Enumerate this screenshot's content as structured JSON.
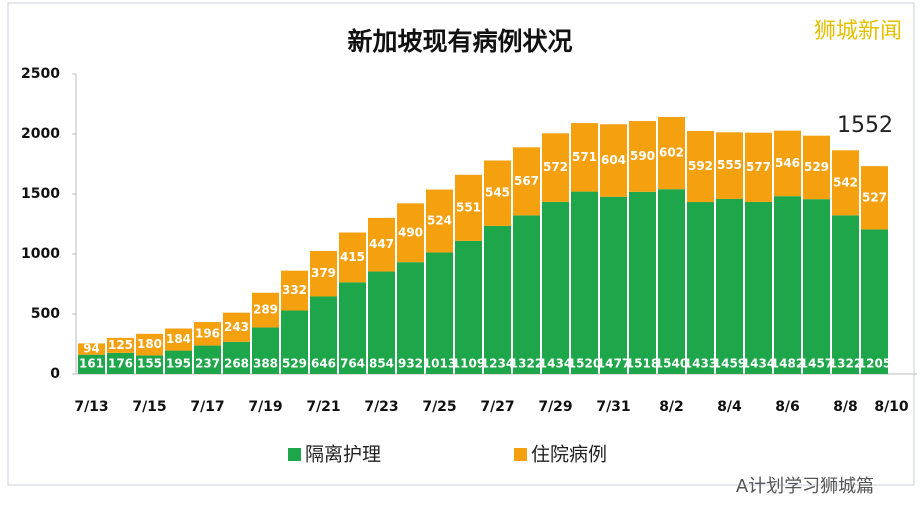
{
  "chart_data": {
    "type": "stacked-bar",
    "title": "新加坡现有病例状况",
    "categories": [
      "7/13",
      null,
      "7/15",
      null,
      "7/17",
      null,
      "7/19",
      null,
      "7/21",
      null,
      "7/23",
      null,
      "7/25",
      null,
      "7/27",
      null,
      "7/29",
      null,
      "7/31",
      null,
      "8/2",
      null,
      "8/4",
      null,
      "8/6",
      null,
      "8/8",
      null
    ],
    "end_label": "8/10",
    "series": [
      {
        "name": "隔离护理",
        "color": "#1ea64a",
        "values": [
          161,
          176,
          155,
          195,
          237,
          268,
          388,
          529,
          646,
          764,
          854,
          932,
          1013,
          1109,
          1234,
          1322,
          1434,
          1520,
          1477,
          1518,
          1540,
          1433,
          1459,
          1434,
          1482,
          1457,
          1322,
          1205
        ]
      },
      {
        "name": "住院病例",
        "color": "#f5a00f",
        "values": [
          94,
          125,
          180,
          184,
          196,
          243,
          289,
          332,
          379,
          415,
          447,
          490,
          524,
          551,
          545,
          567,
          572,
          571,
          604,
          590,
          602,
          592,
          555,
          577,
          546,
          529,
          542,
          527
        ]
      }
    ],
    "ylim": [
      0,
      2500
    ],
    "yticks": [
      0,
      500,
      1000,
      1500,
      2000,
      2500
    ],
    "annotation": "1552",
    "watermark": "狮城新闻",
    "footer": "A计划学习狮城篇"
  }
}
